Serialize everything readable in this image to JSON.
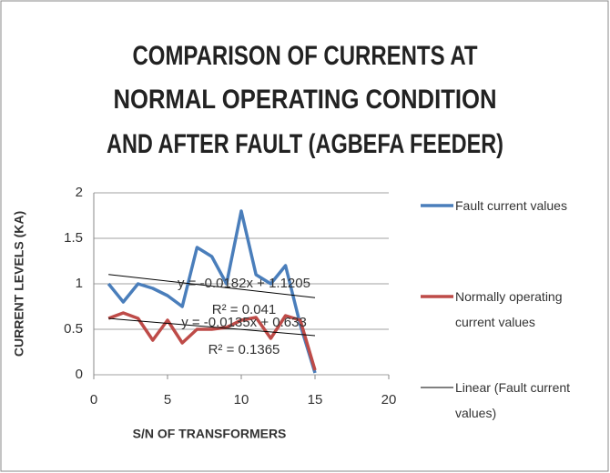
{
  "chart_data": {
    "type": "line",
    "title": [
      "COMPARISON OF CURRENTS AT",
      "NORMAL OPERATING CONDITION",
      "AND AFTER FAULT (AGBEFA FEEDER)"
    ],
    "x_label": "S/N OF TRANSFORMERS",
    "y_label": "CURRENT LEVELS (KA)",
    "x": [
      1,
      2,
      3,
      4,
      5,
      6,
      7,
      8,
      9,
      10,
      11,
      12,
      13,
      14,
      15
    ],
    "series": [
      {
        "name": "Fault current values",
        "color": "#4a7ebb",
        "values": [
          1.0,
          0.8,
          1.0,
          0.95,
          0.87,
          0.75,
          1.4,
          1.3,
          1.0,
          1.8,
          1.1,
          1.0,
          1.2,
          0.55,
          0.02
        ]
      },
      {
        "name": "Normally operating current values",
        "color": "#be4b48",
        "values": [
          0.62,
          0.68,
          0.62,
          0.38,
          0.6,
          0.35,
          0.5,
          0.5,
          0.52,
          0.6,
          0.63,
          0.4,
          0.65,
          0.6,
          0.05
        ]
      }
    ],
    "trendlines": [
      {
        "name": "Linear (Fault current values)",
        "color": "#000000",
        "slope": -0.0182,
        "intercept": 1.1205,
        "equation": "y = -0.0182x + 1.1205",
        "r2": "R² = 0.041"
      },
      {
        "color": "#000000",
        "slope": -0.0135,
        "intercept": 0.633,
        "equation": "y = -0.0135x + 0.633",
        "r2": "R² = 0.1365"
      }
    ],
    "xlim": [
      0,
      20
    ],
    "xticks": [
      0,
      5,
      10,
      15,
      20
    ],
    "ylim": [
      0,
      2
    ],
    "yticks": [
      0,
      0.5,
      1,
      1.5,
      2
    ],
    "grid": true,
    "legend": "right"
  }
}
